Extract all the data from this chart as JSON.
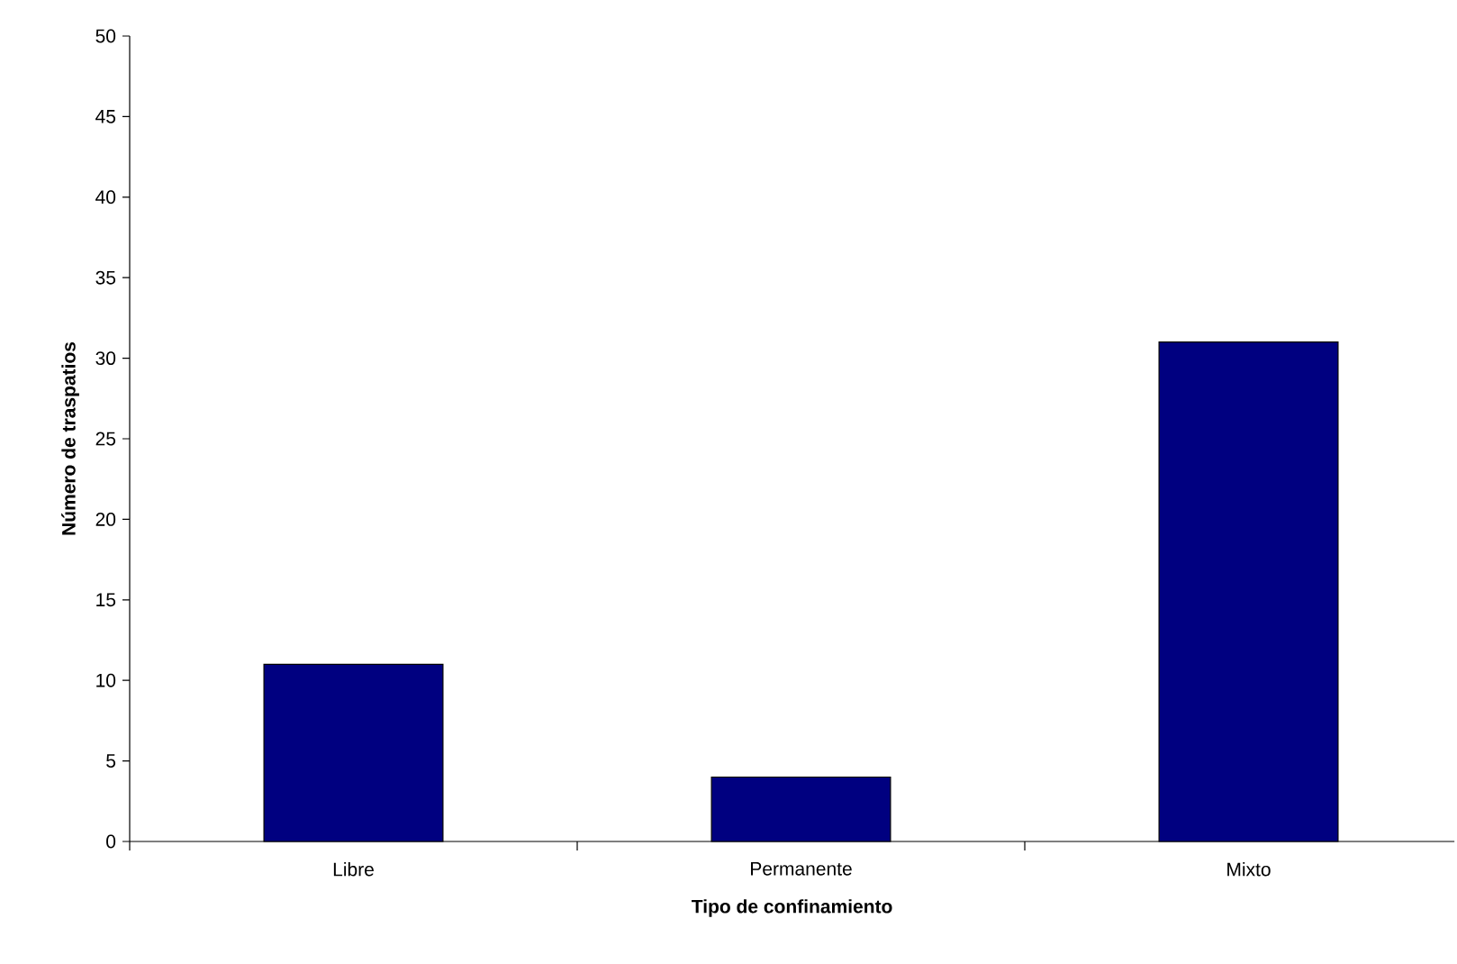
{
  "chart_data": {
    "type": "bar",
    "xlabel": "Tipo de confinamiento",
    "ylabel": "Número de traspatios",
    "categories": [
      "Libre",
      "Permanente",
      "Mixto"
    ],
    "values": [
      11,
      4,
      31
    ],
    "color": "#000080",
    "ylim": [
      0,
      50
    ],
    "yticks": [
      0,
      5,
      10,
      15,
      20,
      25,
      30,
      35,
      40,
      45,
      50
    ]
  }
}
